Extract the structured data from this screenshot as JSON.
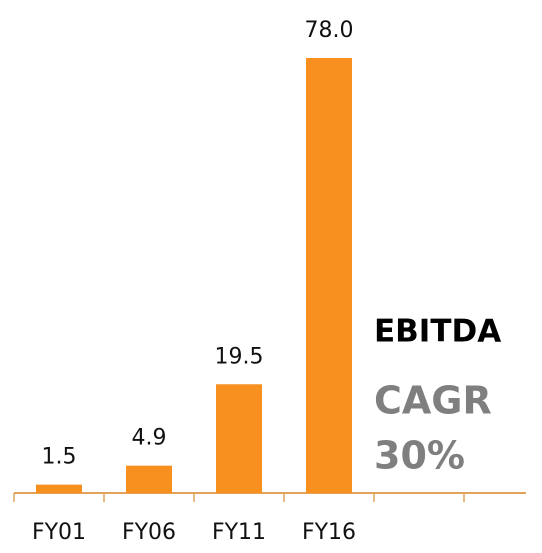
{
  "chart_data": {
    "type": "bar",
    "categories": [
      "FY01",
      "FY06",
      "FY11",
      "FY16"
    ],
    "values": [
      1.5,
      4.9,
      19.5,
      78.0
    ],
    "value_labels": [
      "1.5",
      "4.9",
      "19.5",
      "78.0"
    ],
    "color": "#f7901e",
    "annotations": [
      "EBITDA",
      "CAGR",
      "30%"
    ]
  }
}
